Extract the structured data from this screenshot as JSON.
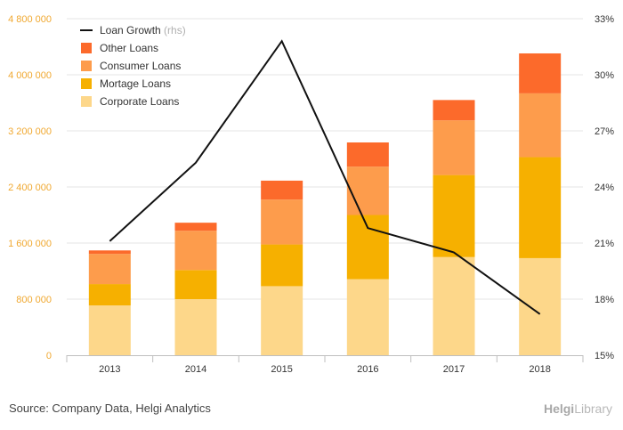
{
  "chart_data": {
    "type": "bar",
    "stacked": true,
    "categories": [
      "2013",
      "2014",
      "2015",
      "2016",
      "2017",
      "2018"
    ],
    "series": [
      {
        "name": "Corporate Loans",
        "color": "#fdd78a",
        "values": [
          710000,
          800000,
          985000,
          1085000,
          1400000,
          1385000
        ]
      },
      {
        "name": "Mortage Loans",
        "color": "#f6b000",
        "values": [
          305000,
          415000,
          595000,
          915000,
          1170000,
          1440000
        ]
      },
      {
        "name": "Consumer Loans",
        "color": "#fd9c4c",
        "values": [
          430000,
          560000,
          640000,
          690000,
          780000,
          910000
        ]
      },
      {
        "name": "Other Loans",
        "color": "#fc6a2b",
        "values": [
          50000,
          115000,
          270000,
          345000,
          290000,
          570000
        ]
      }
    ],
    "line_series": {
      "name": "Loan Growth",
      "name_suffix": "(rhs)",
      "color": "#111111",
      "values": [
        21.1,
        25.3,
        31.8,
        21.8,
        20.5,
        17.2
      ]
    },
    "y_left": {
      "min": 0,
      "max": 4800000,
      "ticks": [
        "0",
        "800 000",
        "1 600 000",
        "2 400 000",
        "3 200 000",
        "4 000 000",
        "4 800 000"
      ]
    },
    "y_right": {
      "min": 15,
      "max": 33,
      "ticks": [
        "15%",
        "18%",
        "21%",
        "24%",
        "27%",
        "30%",
        "33%"
      ]
    },
    "grid": true,
    "legend_position": "top-left",
    "legend_order": [
      "Loan Growth",
      "Other Loans",
      "Consumer Loans",
      "Mortage Loans",
      "Corporate Loans"
    ]
  },
  "footer": {
    "source": "Source: Company Data, Helgi Analytics",
    "brand_prefix": "Helgi",
    "brand_suffix": "Library"
  }
}
